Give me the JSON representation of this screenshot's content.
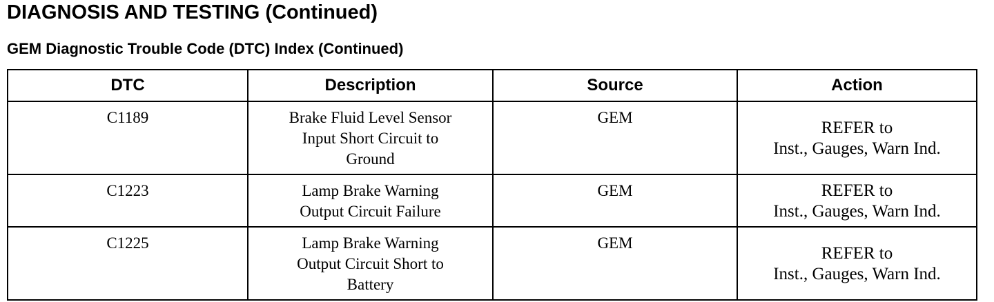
{
  "header": {
    "title": "DIAGNOSIS AND TESTING (Continued)",
    "subtitle": "GEM Diagnostic Trouble Code (DTC) Index (Continued)"
  },
  "table": {
    "columns": [
      "DTC",
      "Description",
      "Source",
      "Action"
    ],
    "rows": [
      {
        "dtc": "C1189",
        "description": [
          "Brake Fluid Level Sensor",
          "Input Short Circuit to",
          "Ground"
        ],
        "source": "GEM",
        "action": [
          "REFER to",
          "Inst., Gauges, Warn Ind."
        ]
      },
      {
        "dtc": "C1223",
        "description": [
          "Lamp Brake Warning",
          "Output Circuit Failure"
        ],
        "source": "GEM",
        "action": [
          "REFER to",
          "Inst., Gauges, Warn Ind."
        ]
      },
      {
        "dtc": "C1225",
        "description": [
          "Lamp Brake Warning",
          "Output Circuit Short to",
          "Battery"
        ],
        "source": "GEM",
        "action": [
          "REFER to",
          "Inst., Gauges, Warn Ind."
        ]
      }
    ]
  }
}
